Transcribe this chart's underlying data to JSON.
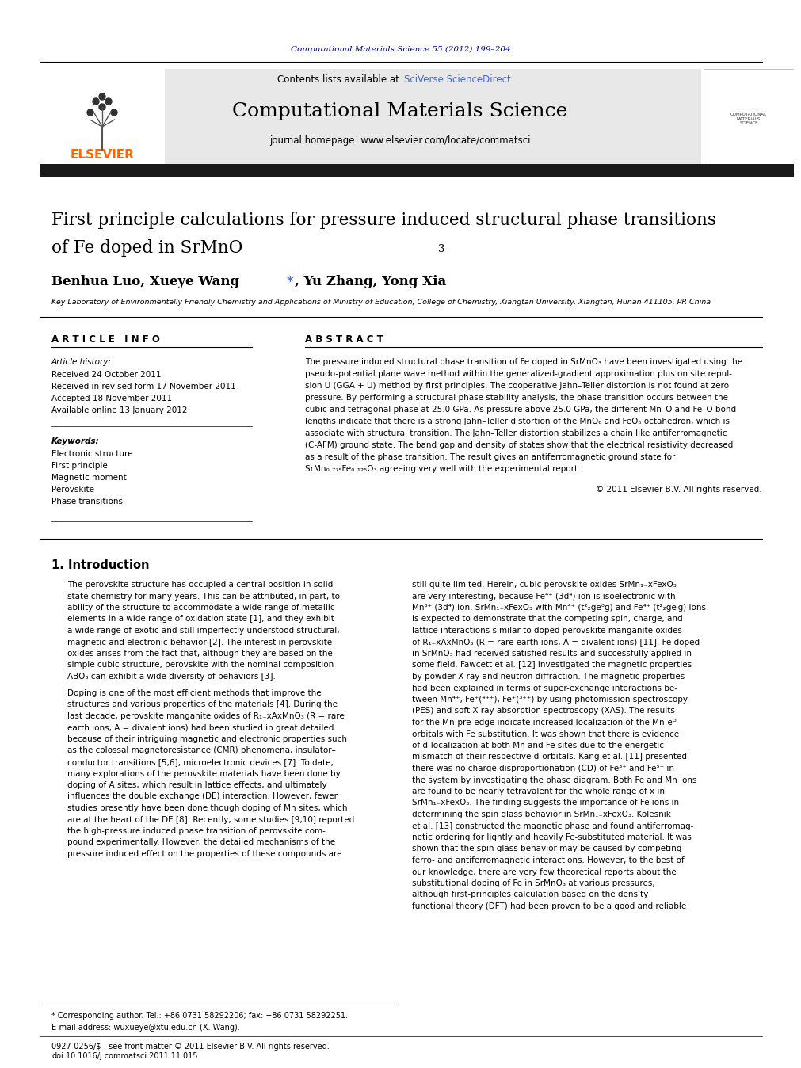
{
  "journal_ref": "Computational Materials Science 55 (2012) 199–204",
  "journal_ref_color": "#00008B",
  "contents_text": "Contents lists available at ",
  "sciverse_text": "SciVerse ScienceDirect",
  "sciverse_color": "#4169E1",
  "journal_name": "Computational Materials Science",
  "journal_homepage": "journal homepage: www.elsevier.com/locate/commatsci",
  "elsevier_color": "#FF6600",
  "header_bg": "#E8E8E8",
  "black_bar_color": "#1a1a1a",
  "article_title_line1": "First principle calculations for pressure induced structural phase transitions",
  "article_title_line2": "of Fe doped in SrMnO",
  "article_title_sub": "3",
  "article_info_header": "A R T I C L E   I N F O",
  "abstract_header": "A B S T R A C T",
  "article_history_label": "Article history:",
  "received": "Received 24 October 2011",
  "received_revised": "Received in revised form 17 November 2011",
  "accepted": "Accepted 18 November 2011",
  "available": "Available online 13 January 2012",
  "keywords_label": "Keywords:",
  "keywords": [
    "Electronic structure",
    "First principle",
    "Magnetic moment",
    "Perovskite",
    "Phase transitions"
  ],
  "copyright": "© 2011 Elsevier B.V. All rights reserved.",
  "section1_title": "1. Introduction",
  "affiliation": "Key Laboratory of Environmentally Friendly Chemistry and Applications of Ministry of Education, College of Chemistry, Xiangtan University, Xiangtan, Hunan 411105, PR China",
  "footnote_star": "* Corresponding author. Tel.: +86 0731 58292206; fax: +86 0731 58292251.",
  "footnote_email": "E-mail address: wuxueye@xtu.edu.cn (X. Wang).",
  "footer_line1": "0927-0256/$ - see front matter © 2011 Elsevier B.V. All rights reserved.",
  "footer_line2": "doi:10.1016/j.commatsci.2011.11.015",
  "bg_color": "#FFFFFF",
  "text_color": "#000000",
  "link_color": "#4169E1",
  "abstract_lines": [
    "The pressure induced structural phase transition of Fe doped in SrMnO₃ have been investigated using the",
    "pseudo-potential plane wave method within the generalized-gradient approximation plus on site repul-",
    "sion U (GGA + U) method by first principles. The cooperative Jahn–Teller distortion is not found at zero",
    "pressure. By performing a structural phase stability analysis, the phase transition occurs between the",
    "cubic and tetragonal phase at 25.0 GPa. As pressure above 25.0 GPa, the different Mn–O and Fe–O bond",
    "lengths indicate that there is a strong Jahn–Teller distortion of the MnO₆ and FeO₆ octahedron, which is",
    "associate with structural transition. The Jahn–Teller distortion stabilizes a chain like antiferromagnetic",
    "(C-AFM) ground state. The band gap and density of states show that the electrical resistivity decreased",
    "as a result of the phase transition. The result gives an antiferromagnetic ground state for",
    "SrMn₀.₇₇₅Fe₀.₁₂₅O₃ agreeing very well with the experimental report."
  ],
  "col1_lines": [
    "The perovskite structure has occupied a central position in solid",
    "state chemistry for many years. This can be attributed, in part, to",
    "ability of the structure to accommodate a wide range of metallic",
    "elements in a wide range of oxidation state [1], and they exhibit",
    "a wide range of exotic and still imperfectly understood structural,",
    "magnetic and electronic behavior [2]. The interest in perovskite",
    "oxides arises from the fact that, although they are based on the",
    "simple cubic structure, perovskite with the nominal composition",
    "ABO₃ can exhibit a wide diversity of behaviors [3]."
  ],
  "col1b_lines": [
    "Doping is one of the most efficient methods that improve the",
    "structures and various properties of the materials [4]. During the",
    "last decade, perovskite manganite oxides of R₁₋xAxMnO₃ (R = rare",
    "earth ions, A = divalent ions) had been studied in great detailed",
    "because of their intriguing magnetic and electronic properties such",
    "as the colossal magnetoresistance (CMR) phenomena, insulator–",
    "conductor transitions [5,6], microelectronic devices [7]. To date,",
    "many explorations of the perovskite materials have been done by",
    "doping of A sites, which result in lattice effects, and ultimately",
    "influences the double exchange (DE) interaction. However, fewer",
    "studies presently have been done though doping of Mn sites, which",
    "are at the heart of the DE [8]. Recently, some studies [9,10] reported",
    "the high-pressure induced phase transition of perovskite com-",
    "pound experimentally. However, the detailed mechanisms of the",
    "pressure induced effect on the properties of these compounds are"
  ],
  "col2_lines": [
    "still quite limited. Herein, cubic perovskite oxides SrMn₁₋xFexO₃",
    "are very interesting, because Fe⁴⁺ (3d⁴) ion is isoelectronic with",
    "Mn³⁺ (3d⁴) ion. SrMn₁₋xFexO₃ with Mn⁴⁺ (t²₂ge⁰g) and Fe⁴⁺ (t²₂geⁱg) ions",
    "is expected to demonstrate that the competing spin, charge, and",
    "lattice interactions similar to doped perovskite manganite oxides",
    "of R₁₋xAxMnO₃ (R = rare earth ions, A = divalent ions) [11]. Fe doped",
    "in SrMnO₃ had received satisfied results and successfully applied in",
    "some field. Fawcett et al. [12] investigated the magnetic properties",
    "by powder X-ray and neutron diffraction. The magnetic properties",
    "had been explained in terms of super-exchange interactions be-",
    "tween Mn⁴⁺, Fe⁺(⁴⁺⁺), Fe⁺(³⁺⁺) by using photomission spectroscopy",
    "(PES) and soft X-ray absorption spectroscopy (XAS). The results",
    "for the Mn-pre-edge indicate increased localization of the Mn-eᴳ",
    "orbitals with Fe substitution. It was shown that there is evidence",
    "of d-localization at both Mn and Fe sites due to the energetic",
    "mismatch of their respective d-orbitals. Kang et al. [11] presented",
    "there was no charge disproportionation (CD) of Fe³⁺ and Fe⁵⁺ in",
    "the system by investigating the phase diagram. Both Fe and Mn ions",
    "are found to be nearly tetravalent for the whole range of x in",
    "SrMn₁₋xFexO₃. The finding suggests the importance of Fe ions in",
    "determining the spin glass behavior in SrMn₁₋xFexO₃. Kolesnik",
    "et al. [13] constructed the magnetic phase and found antiferromag-",
    "netic ordering for lightly and heavily Fe-substituted material. It was",
    "shown that the spin glass behavior may be caused by competing",
    "ferro- and antiferromagnetic interactions. However, to the best of",
    "our knowledge, there are very few theoretical reports about the",
    "substitutional doping of Fe in SrMnO₃ at various pressures,",
    "although first-principles calculation based on the density",
    "functional theory (DFT) had been proven to be a good and reliable"
  ]
}
